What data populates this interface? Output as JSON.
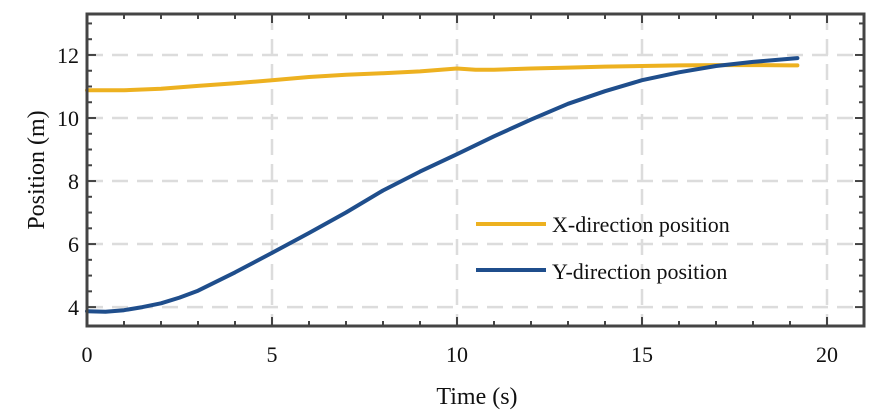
{
  "chart_data": {
    "type": "line",
    "xlabel": "Time (s)",
    "ylabel": "Position (m)",
    "xlim": [
      0,
      21
    ],
    "ylim": [
      3.4,
      13.3
    ],
    "xticks": [
      0,
      5,
      10,
      15,
      20
    ],
    "yticks": [
      4,
      6,
      8,
      10,
      12
    ],
    "grid": true,
    "legend": "center-right",
    "series": [
      {
        "name": "X-direction position",
        "color": "#EDB120",
        "x": [
          0,
          1,
          2,
          3,
          4,
          5,
          6,
          7,
          8,
          9,
          10,
          10.5,
          11,
          12,
          13,
          14,
          15,
          16,
          17,
          18,
          19,
          19.2
        ],
        "y": [
          10.88,
          10.88,
          10.93,
          11.02,
          11.1,
          11.2,
          11.3,
          11.37,
          11.42,
          11.48,
          11.57,
          11.53,
          11.53,
          11.57,
          11.6,
          11.63,
          11.65,
          11.67,
          11.68,
          11.68,
          11.67,
          11.67
        ]
      },
      {
        "name": "Y-direction position",
        "color": "#1F4E8C",
        "x": [
          0,
          0.5,
          1,
          1.5,
          2,
          2.5,
          3,
          4,
          5,
          6,
          7,
          8,
          9,
          10,
          11,
          12,
          13,
          14,
          15,
          16,
          17,
          18,
          19,
          19.2
        ],
        "y": [
          3.87,
          3.85,
          3.9,
          4.0,
          4.12,
          4.3,
          4.52,
          5.1,
          5.72,
          6.35,
          7.0,
          7.7,
          8.3,
          8.85,
          9.42,
          9.95,
          10.45,
          10.85,
          11.2,
          11.45,
          11.65,
          11.78,
          11.88,
          11.9
        ]
      }
    ]
  }
}
